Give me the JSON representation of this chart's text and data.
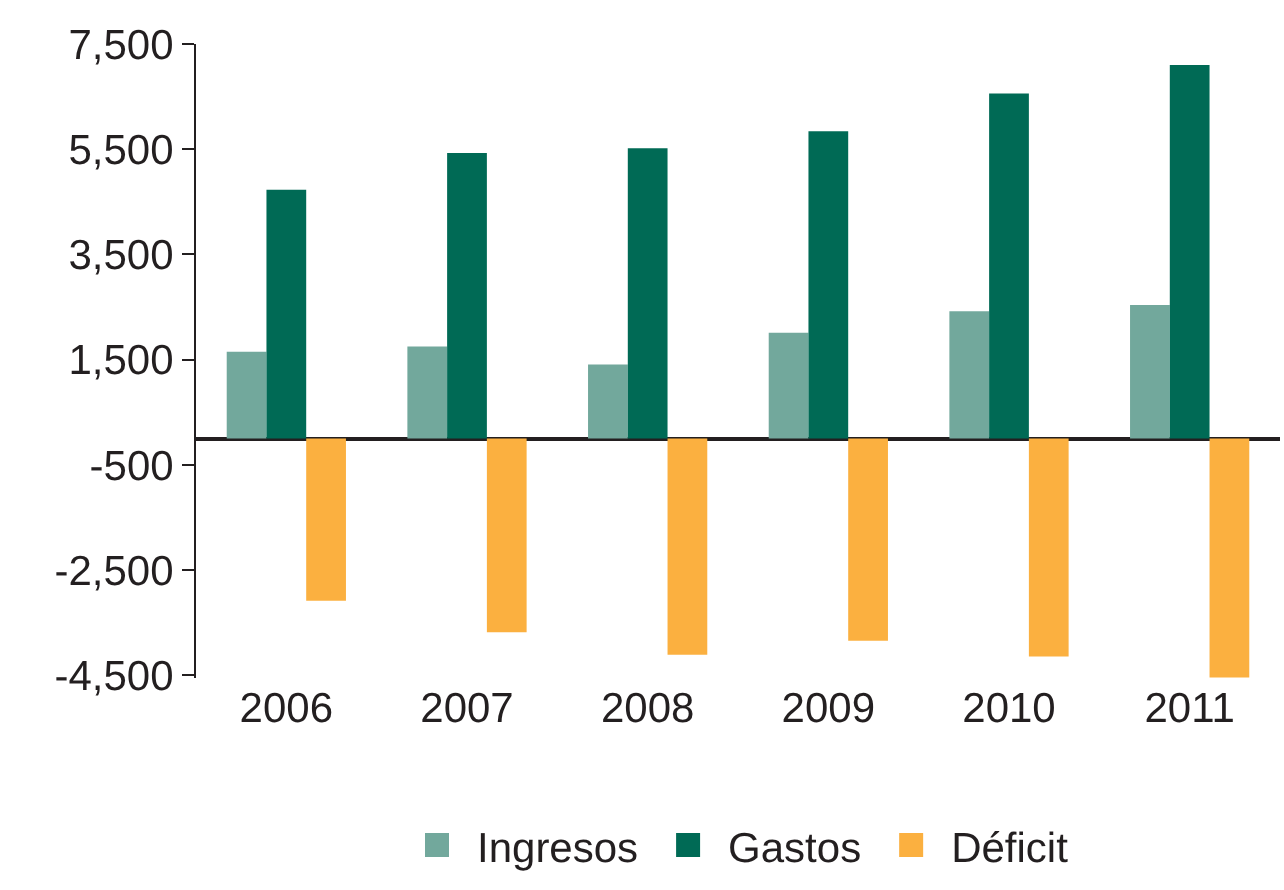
{
  "chart_data": {
    "type": "bar",
    "categories": [
      "2006",
      "2007",
      "2008",
      "2009",
      "2010",
      "2011"
    ],
    "series": [
      {
        "name": "Ingresos",
        "color": "#72a89c",
        "values": [
          1650,
          1750,
          1410,
          2010,
          2420,
          2540
        ]
      },
      {
        "name": "Gastos",
        "color": "#006a55",
        "values": [
          4730,
          5430,
          5520,
          5840,
          6560,
          7100
        ]
      },
      {
        "name": "Déficit",
        "color": "#fbb040",
        "values": [
          -3080,
          -3680,
          -4110,
          -3840,
          -4140,
          -4540
        ]
      }
    ],
    "ylim": [
      -4550,
      7500
    ],
    "yticks": [
      {
        "value": 7500,
        "label": "7,500"
      },
      {
        "value": 5500,
        "label": "5,500"
      },
      {
        "value": 3500,
        "label": "3,500"
      },
      {
        "value": 1500,
        "label": "1,500"
      },
      {
        "value": -500,
        "label": "-500"
      },
      {
        "value": -2500,
        "label": "-2,500"
      },
      {
        "value": -4500,
        "label": "-4,500"
      }
    ],
    "legend": "bottom"
  }
}
